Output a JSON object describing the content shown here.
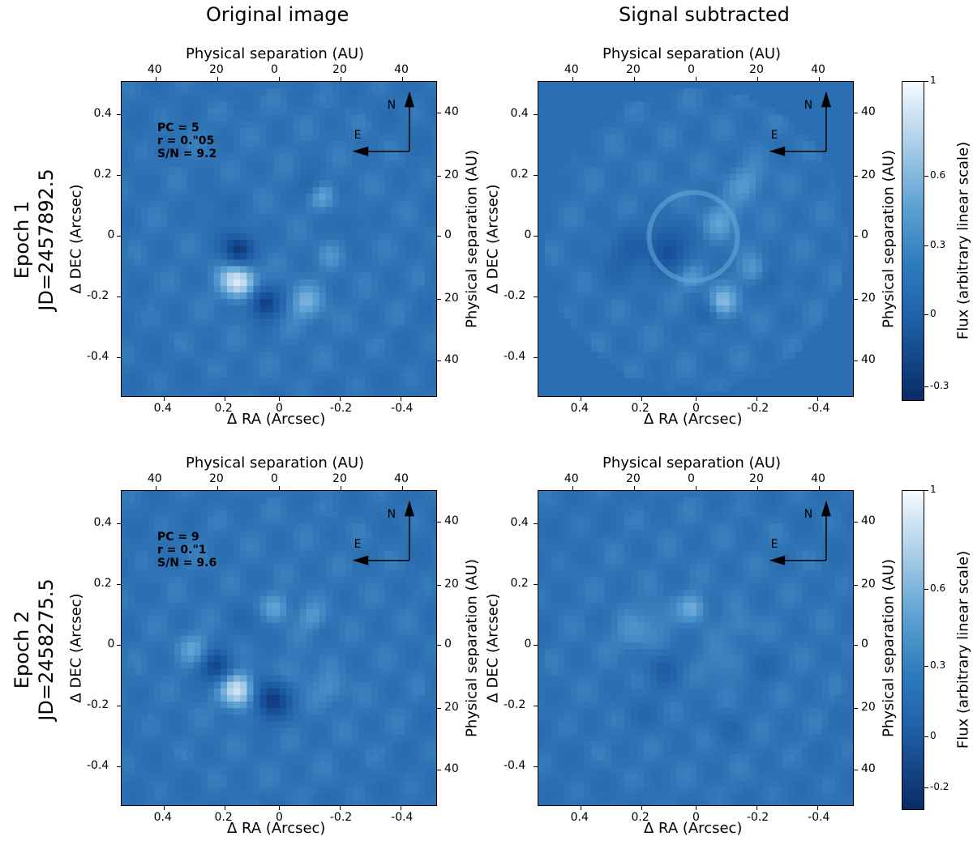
{
  "columns": {
    "left_title": "Original image",
    "right_title": "Signal subtracted"
  },
  "rows": [
    {
      "epoch": "Epoch 1",
      "jd": "JD=2457892.5"
    },
    {
      "epoch": "Epoch 2",
      "jd": "JD=2458275.5"
    }
  ],
  "axes": {
    "top_label": "Physical separation (AU)",
    "right_label": "Physical separation (AU)",
    "bottom_label": "Δ RA (Arcsec)",
    "left_label": "Δ DEC (Arcsec)",
    "top_ticks": [
      "40",
      "20",
      "0",
      "20",
      "40"
    ],
    "bottom_ticks": [
      "0.4",
      "0.2",
      "0",
      "-0.2",
      "-0.4"
    ],
    "left_ticks": [
      "0.4",
      "0.2",
      "0",
      "-0.2",
      "-0.4"
    ],
    "right_ticks": [
      "40",
      "20",
      "0",
      "20",
      "40"
    ]
  },
  "compass": {
    "north": "N",
    "east": "E"
  },
  "annotations": [
    {
      "pc": "PC = 5",
      "r": "r = 0.\"05",
      "sn": "S/N = 9.2"
    },
    {
      "pc": "PC = 9",
      "r": "r = 0.\"1",
      "sn": "S/N = 9.6"
    }
  ],
  "colorbars": [
    {
      "label": "Flux (arbitrary linear scale)",
      "ticks": [
        "1",
        "0.6",
        "0.3",
        "0",
        "-0.3"
      ]
    },
    {
      "label": "Flux (arbitrary linear scale)",
      "ticks": [
        "1",
        "0.6",
        "0.3",
        "0",
        "-0.2"
      ]
    }
  ],
  "colormap": {
    "dark": "#0a2b66",
    "mid": "#2f74b5",
    "light": "#f5faff"
  }
}
